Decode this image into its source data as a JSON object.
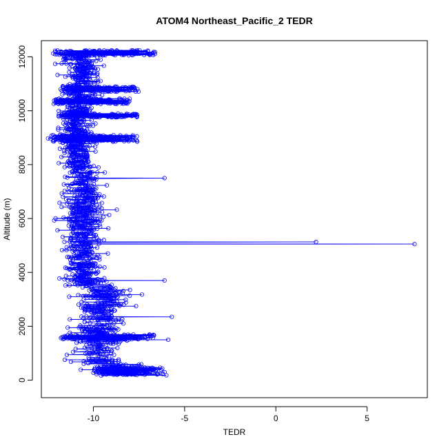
{
  "chart_data": {
    "type": "scatter",
    "title": "ATOM4 Northeast_Pacific_2 TEDR",
    "xlabel": "TEDR",
    "ylabel": "Altitude (m)",
    "xlim": [
      -12.85,
      8.3
    ],
    "ylim": [
      -650,
      12600
    ],
    "x_ticks": [
      -10,
      -5,
      0,
      5
    ],
    "x_tick_labels": [
      "-10",
      "-5",
      "0",
      "5"
    ],
    "y_ticks": [
      0,
      2000,
      4000,
      6000,
      8000,
      10000,
      12000
    ],
    "y_tick_labels": [
      "0",
      "2000",
      "4000",
      "6000",
      "8000",
      "10000",
      "12000"
    ],
    "grid": false,
    "legend": "none",
    "style": "points connected by lines",
    "series_color": "#0000ff",
    "generation": {
      "seed": 7,
      "n_points": 2400
    },
    "dense_bands": [
      {
        "y_min": 12050,
        "y_max": 12250,
        "x_min": -12.2,
        "x_max": -6.6
      },
      {
        "y_min": 10700,
        "y_max": 10900,
        "x_min": -11.8,
        "x_max": -7.5
      },
      {
        "y_min": 10250,
        "y_max": 10450,
        "x_min": -12.2,
        "x_max": -8.0
      },
      {
        "y_min": 9750,
        "y_max": 9900,
        "x_min": -11.9,
        "x_max": -7.6
      },
      {
        "y_min": 8850,
        "y_max": 9100,
        "x_min": -12.5,
        "x_max": -7.5
      },
      {
        "y_min": 1500,
        "y_max": 1700,
        "x_min": -11.8,
        "x_max": -6.6
      },
      {
        "y_min": 200,
        "y_max": 500,
        "x_min": -10.0,
        "x_max": -6.0
      }
    ],
    "outliers": [
      {
        "x": 7.6,
        "y": 5050
      },
      {
        "x": 2.2,
        "y": 5130
      },
      {
        "x": -6.1,
        "y": 7500
      },
      {
        "x": -6.1,
        "y": 3700
      },
      {
        "x": -5.7,
        "y": 2350
      },
      {
        "x": -5.9,
        "y": 1500
      },
      {
        "x": -6.0,
        "y": 180
      }
    ]
  }
}
